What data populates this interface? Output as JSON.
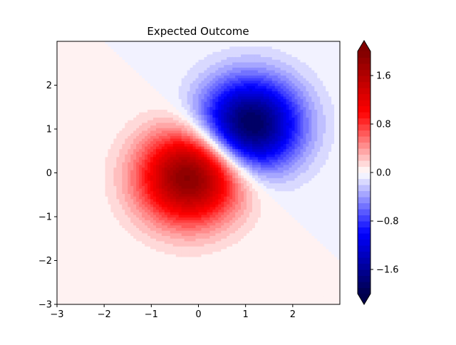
{
  "chart_data": {
    "type": "contourf",
    "title": "Expected Outcome",
    "xlabel": "",
    "ylabel": "",
    "xlim": [
      -3,
      3
    ],
    "ylim": [
      -3,
      3
    ],
    "xticks": [
      -3,
      -2,
      -1,
      0,
      1,
      2
    ],
    "yticks": [
      -3,
      -2,
      -1,
      0,
      1,
      2
    ],
    "colormap": "seismic",
    "colorbar": {
      "vmin": -2.0,
      "vmax": 2.0,
      "ticks": [
        -1.6,
        -0.8,
        0.0,
        0.8,
        1.6
      ],
      "tick_labels": [
        "−1.6",
        "−0.8",
        "0.0",
        "0.8",
        "1.6"
      ],
      "extend": "both"
    },
    "field": {
      "description_of_features": "positive lobe and negative lobe",
      "positive_peak": {
        "x": -0.2,
        "y": -0.1,
        "value": 1.95
      },
      "negative_peak": {
        "x": 1.1,
        "y": 1.1,
        "value": -1.95
      }
    },
    "grid": false
  }
}
